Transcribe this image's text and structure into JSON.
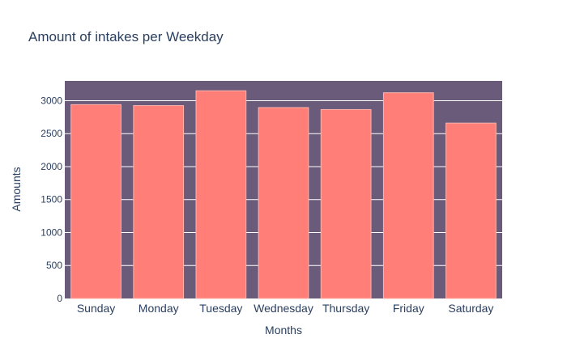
{
  "chart_data": {
    "type": "bar",
    "title": "Amount of intakes per Weekday",
    "xlabel": "Months",
    "ylabel": "Amounts",
    "categories": [
      "Sunday",
      "Monday",
      "Tuesday",
      "Wednesday",
      "Thursday",
      "Friday",
      "Saturday"
    ],
    "values": [
      2940,
      2925,
      3150,
      2895,
      2865,
      3120,
      2660
    ],
    "ylim": [
      0,
      3300
    ],
    "yticks": [
      0,
      500,
      1000,
      1500,
      2000,
      2500,
      3000
    ],
    "ytick_labels": [
      "0",
      "500",
      "1000",
      "1500",
      "2000",
      "2500",
      "3000"
    ],
    "grid": true,
    "colors": {
      "plot_background": "#6b5b7b",
      "bar_fill": "#ff7f78",
      "bar_outline": "#ffb3ad",
      "gridline": "#ffffff",
      "text": "#2a3f5f"
    }
  }
}
